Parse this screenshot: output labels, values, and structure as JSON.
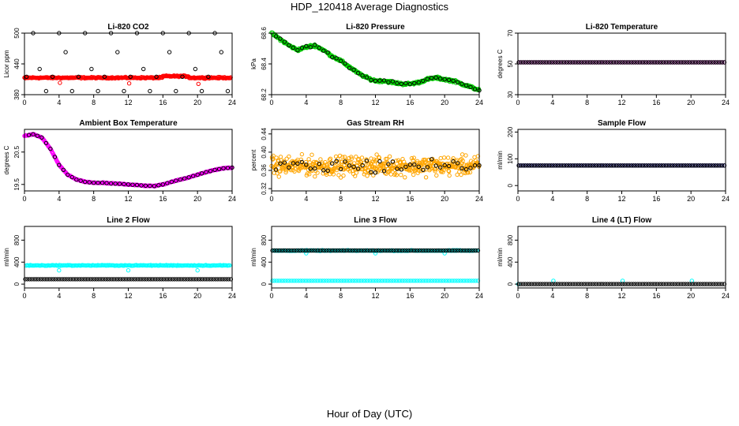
{
  "page": {
    "title": "HDP_120418  Average Diagnostics",
    "xlabel": "Hour of Day (UTC)"
  },
  "colors": {
    "black": "#000000",
    "red": "#ff0000",
    "green": "#00cc00",
    "magenta": "#ff00ff",
    "orange": "#ffa500",
    "blue": "#0000ff",
    "cyan": "#00ffff"
  },
  "chart_data": [
    {
      "id": "co2",
      "type": "scatter",
      "title": "Li-820 CO2",
      "ylabel": "Licor ppm",
      "xlim": [
        0,
        24
      ],
      "ylim": [
        380,
        500
      ],
      "xticks": [
        "0",
        "4",
        "8",
        "12",
        "16",
        "20",
        "24"
      ],
      "yticks": [
        [
          "380",
          380
        ],
        [
          "440",
          440
        ],
        [
          "500",
          500
        ]
      ],
      "series": [
        {
          "color": "#ff0000",
          "pattern": "co2_red"
        },
        {
          "color": "#000000",
          "pattern": "co2_black"
        }
      ]
    },
    {
      "id": "pressure",
      "type": "scatter",
      "title": "Li-820 Pressure",
      "ylabel": "kPa",
      "xlim": [
        0,
        24
      ],
      "ylim": [
        68.2,
        68.6
      ],
      "xticks": [
        "0",
        "4",
        "8",
        "12",
        "16",
        "20",
        "24"
      ],
      "yticks": [
        [
          "68.2",
          68.2
        ],
        [
          "68.4",
          68.4
        ],
        [
          "68.6",
          68.6
        ]
      ],
      "series": [
        {
          "color": "#00cc00",
          "pattern": "pressure_green"
        },
        {
          "color": "#000000",
          "pattern": "pressure_black"
        }
      ],
      "anchors": [
        [
          0,
          68.6
        ],
        [
          1,
          68.56
        ],
        [
          2,
          68.52
        ],
        [
          3,
          68.49
        ],
        [
          4,
          68.51
        ],
        [
          5,
          68.52
        ],
        [
          6,
          68.49
        ],
        [
          7,
          68.45
        ],
        [
          8,
          68.42
        ],
        [
          9,
          68.38
        ],
        [
          10,
          68.34
        ],
        [
          11,
          68.31
        ],
        [
          12,
          68.29
        ],
        [
          13,
          68.29
        ],
        [
          14,
          68.28
        ],
        [
          15,
          68.27
        ],
        [
          16,
          68.27
        ],
        [
          17,
          68.28
        ],
        [
          18,
          68.3
        ],
        [
          19,
          68.31
        ],
        [
          20,
          68.3
        ],
        [
          21,
          68.29
        ],
        [
          22,
          68.27
        ],
        [
          23,
          68.25
        ],
        [
          24,
          68.23
        ]
      ]
    },
    {
      "id": "licor_temp",
      "type": "scatter",
      "title": "Li-820 Temperature",
      "ylabel": "degrees C",
      "xlim": [
        0,
        24
      ],
      "ylim": [
        30,
        70
      ],
      "xticks": [
        "0",
        "4",
        "8",
        "12",
        "16",
        "20",
        "24"
      ],
      "yticks": [
        [
          "30",
          30
        ],
        [
          "50",
          50
        ],
        [
          "70",
          70
        ]
      ],
      "series": [
        {
          "color": "#ff00ff",
          "pattern": "flat",
          "level": 51
        },
        {
          "color": "#000000",
          "pattern": "flat",
          "level": 51
        }
      ]
    },
    {
      "id": "box_temp",
      "type": "scatter",
      "title": "Ambient Box Temperature",
      "ylabel": "degrees C",
      "xlim": [
        0,
        24
      ],
      "ylim": [
        19.3,
        21.2
      ],
      "xticks": [
        "0",
        "4",
        "8",
        "12",
        "16",
        "20",
        "24"
      ],
      "yticks": [
        [
          "19.5",
          19.5
        ],
        [
          "20.5",
          20.5
        ]
      ],
      "series": [
        {
          "color": "#ff00ff",
          "pattern": "box_magenta"
        },
        {
          "color": "#000000",
          "pattern": "box_black"
        }
      ],
      "anchors": [
        [
          0,
          21.0
        ],
        [
          1,
          21.05
        ],
        [
          2,
          20.95
        ],
        [
          3,
          20.6
        ],
        [
          4,
          20.1
        ],
        [
          5,
          19.8
        ],
        [
          6,
          19.65
        ],
        [
          7,
          19.58
        ],
        [
          8,
          19.55
        ],
        [
          9,
          19.55
        ],
        [
          10,
          19.53
        ],
        [
          11,
          19.52
        ],
        [
          12,
          19.5
        ],
        [
          13,
          19.48
        ],
        [
          14,
          19.46
        ],
        [
          15,
          19.45
        ],
        [
          16,
          19.5
        ],
        [
          17,
          19.58
        ],
        [
          18,
          19.65
        ],
        [
          19,
          19.72
        ],
        [
          20,
          19.8
        ],
        [
          21,
          19.88
        ],
        [
          22,
          19.95
        ],
        [
          23,
          20.0
        ],
        [
          24,
          20.02
        ]
      ]
    },
    {
      "id": "rh",
      "type": "scatter",
      "title": "Gas Stream RH",
      "ylabel": "percent",
      "xlim": [
        0,
        24
      ],
      "ylim": [
        0.315,
        0.45
      ],
      "xticks": [
        "0",
        "4",
        "8",
        "12",
        "16",
        "20",
        "24"
      ],
      "yticks": [
        [
          "0.32",
          0.32
        ],
        [
          "0.36",
          0.36
        ],
        [
          "0.40",
          0.4
        ],
        [
          "0.44",
          0.44
        ]
      ],
      "series": [
        {
          "color": "#ffa500",
          "pattern": "rh_orange"
        },
        {
          "color": "#000000",
          "pattern": "rh_black"
        }
      ]
    },
    {
      "id": "sample_flow",
      "type": "scatter",
      "title": "Sample Flow",
      "ylabel": "ml/min",
      "xlim": [
        0,
        24
      ],
      "ylim": [
        -20,
        210
      ],
      "xticks": [
        "0",
        "4",
        "8",
        "12",
        "16",
        "20",
        "24"
      ],
      "yticks": [
        [
          "0",
          0
        ],
        [
          "100",
          100
        ],
        [
          "200",
          200
        ]
      ],
      "series": [
        {
          "color": "#0000ff",
          "pattern": "flat",
          "level": 75
        },
        {
          "color": "#000000",
          "pattern": "flat",
          "level": 75
        }
      ]
    },
    {
      "id": "line2",
      "type": "scatter",
      "title": "Line 2 Flow",
      "ylabel": "ml/min",
      "xlim": [
        0,
        24
      ],
      "ylim": [
        -70,
        1050
      ],
      "xticks": [
        "0",
        "4",
        "8",
        "12",
        "16",
        "20",
        "24"
      ],
      "yticks": [
        [
          "0",
          0
        ],
        [
          "400",
          400
        ],
        [
          "800",
          800
        ]
      ],
      "series": [
        {
          "color": "#00ffff",
          "pattern": "flat_dips",
          "level": 340,
          "dip": 250
        },
        {
          "color": "#000000",
          "pattern": "flat",
          "level": 90
        }
      ]
    },
    {
      "id": "line3",
      "type": "scatter",
      "title": "Line 3 Flow",
      "ylabel": "ml/min",
      "xlim": [
        0,
        24
      ],
      "ylim": [
        -70,
        1050
      ],
      "xticks": [
        "0",
        "4",
        "8",
        "12",
        "16",
        "20",
        "24"
      ],
      "yticks": [
        [
          "0",
          0
        ],
        [
          "400",
          400
        ],
        [
          "800",
          800
        ]
      ],
      "series": [
        {
          "color": "#00ffff",
          "pattern": "flat",
          "level": 60
        },
        {
          "color": "#00ffff",
          "pattern": "flat_dips",
          "level": 610,
          "dip": 560
        },
        {
          "color": "#000000",
          "pattern": "flat",
          "level": 610
        }
      ]
    },
    {
      "id": "line4",
      "type": "scatter",
      "title": "Line 4 (LT) Flow",
      "ylabel": "ml/min",
      "xlim": [
        0,
        24
      ],
      "ylim": [
        -70,
        1050
      ],
      "xticks": [
        "0",
        "4",
        "8",
        "12",
        "16",
        "20",
        "24"
      ],
      "yticks": [
        [
          "0",
          0
        ],
        [
          "400",
          400
        ],
        [
          "800",
          800
        ]
      ],
      "series": [
        {
          "color": "#00ffff",
          "pattern": "spikes",
          "level": 0,
          "spike": 60
        },
        {
          "color": "#000000",
          "pattern": "flat",
          "level": 0
        }
      ]
    }
  ]
}
